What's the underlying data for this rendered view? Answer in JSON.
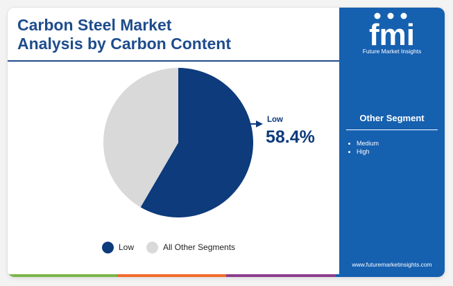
{
  "title_line1": "Carbon Steel Market",
  "title_line2": "Analysis by Carbon Content",
  "chart_data": {
    "type": "pie",
    "slices": [
      {
        "label": "Low",
        "value": 58.4,
        "color": "#0d3b7c"
      },
      {
        "label": "All Other Segments",
        "value": 41.6,
        "color": "#d9d9d9"
      }
    ],
    "callout": {
      "label": "Low",
      "value": "58.4%"
    },
    "legend_position": "bottom"
  },
  "legend": [
    {
      "label": "Low",
      "color": "#0d3b7c"
    },
    {
      "label": "All Other Segments",
      "color": "#d9d9d9"
    }
  ],
  "brand": {
    "logo_text": "fmi",
    "name": "Future Market Insights",
    "url": "www.futuremarketinsights.com",
    "panel_color": "#1660b0"
  },
  "sidebar": {
    "heading": "Other Segment",
    "items": [
      "Medium",
      "High"
    ]
  },
  "accent_colors": [
    "#7ab648",
    "#f26b2a",
    "#8c3c8c",
    "#1660b0"
  ]
}
